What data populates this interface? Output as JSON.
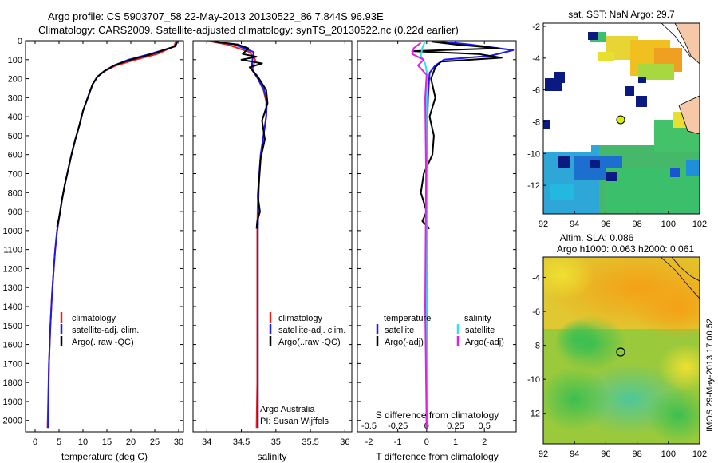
{
  "header": {
    "title_line1": "Argo profile: CS 5903707_58 22-May-2013 20130522_86 7.844S 96.93E",
    "title_line2": "Climatology: CARS2009. Satellite-adjusted climatology: synTS_20130522.nc (0.22d earlier)"
  },
  "colors": {
    "climatology": "#e8231c",
    "satellite_adj": "#1a1aee",
    "argo": "#000000",
    "satellite_cyan": "#33e0e8",
    "argo_magenta": "#e020e0"
  },
  "chart_data": [
    {
      "type": "line",
      "panel": "temperature",
      "xlabel": "temperature (deg C)",
      "ylabel": "",
      "xlim": [
        -2,
        31
      ],
      "ylim": [
        2060,
        0
      ],
      "xticks": [
        "0",
        "5",
        "10",
        "15",
        "20",
        "25",
        "30"
      ],
      "yticks": [
        "0",
        "100",
        "200",
        "300",
        "400",
        "500",
        "600",
        "700",
        "800",
        "900",
        "1000",
        "1100",
        "1200",
        "1300",
        "1400",
        "1500",
        "1600",
        "1700",
        "1800",
        "1900",
        "2000"
      ],
      "legend": [
        "climatology",
        "satellite-adj. clim.",
        "Argo(..raw -QC)"
      ],
      "series": [
        {
          "name": "climatology",
          "color": "climatology",
          "x": [
            29.5,
            29.0,
            25.5,
            21.0,
            17.0,
            14.5,
            13.0,
            12.0,
            11.0,
            10.0,
            9.2,
            8.4,
            7.6,
            6.9,
            6.2,
            5.6,
            5.1,
            4.6,
            4.2,
            3.9,
            3.5,
            3.2,
            2.9,
            2.6
          ],
          "y": [
            0,
            30,
            70,
            100,
            130,
            160,
            190,
            230,
            300,
            370,
            450,
            520,
            600,
            680,
            760,
            840,
            920,
            1000,
            1100,
            1200,
            1350,
            1500,
            1700,
            2040
          ]
        },
        {
          "name": "satellite-adj. clim.",
          "color": "satellite_adj",
          "x": [
            29.8,
            29.3,
            24.0,
            19.5,
            16.5,
            14.4,
            13.0,
            12.0,
            11.0,
            10.0,
            9.2,
            8.4,
            7.6,
            6.9,
            6.2,
            5.6,
            5.1,
            4.6,
            4.2,
            3.9,
            3.5,
            3.2,
            2.9,
            2.7
          ],
          "y": [
            0,
            30,
            70,
            100,
            130,
            160,
            190,
            230,
            300,
            370,
            450,
            520,
            600,
            680,
            760,
            840,
            920,
            1000,
            1100,
            1200,
            1350,
            1500,
            1700,
            2040
          ]
        },
        {
          "name": "Argo(..raw -QC)",
          "color": "argo",
          "x": [
            29.7,
            29.2,
            24.5,
            20.0,
            16.5,
            14.5,
            13.0,
            12.0,
            11.0,
            10.0,
            9.2,
            8.4,
            7.6,
            6.9,
            6.2,
            5.6,
            5.1,
            4.6
          ],
          "y": [
            5,
            30,
            70,
            100,
            130,
            160,
            190,
            230,
            300,
            370,
            450,
            520,
            600,
            680,
            760,
            840,
            920,
            980
          ]
        }
      ]
    },
    {
      "type": "line",
      "panel": "salinity",
      "xlabel": "salinity",
      "xlim": [
        33.8,
        36.1
      ],
      "ylim": [
        2060,
        0
      ],
      "xticks": [
        "34",
        "34.5",
        "35",
        "35.5",
        "36"
      ],
      "legend": [
        "climatology",
        "satellite-adj. clim.",
        "Argo(..raw -QC)"
      ],
      "annotations": [
        "Argo Australia",
        "PI: Susan Wijffels"
      ],
      "series": [
        {
          "name": "climatology",
          "color": "climatology",
          "x": [
            34.0,
            34.3,
            34.62,
            34.7,
            34.66,
            34.74,
            34.82,
            34.86,
            34.86,
            34.82,
            34.78,
            34.76,
            34.74,
            34.73,
            34.73,
            34.73,
            34.73,
            34.72
          ],
          "y": [
            0,
            20,
            60,
            100,
            150,
            200,
            260,
            320,
            400,
            500,
            600,
            700,
            800,
            1000,
            1200,
            1500,
            1800,
            2040
          ]
        },
        {
          "name": "satellite-adj. clim.",
          "color": "satellite_adj",
          "x": [
            34.05,
            34.4,
            34.68,
            34.66,
            34.65,
            34.74,
            34.83,
            34.87,
            34.86,
            34.82,
            34.78,
            34.76,
            34.75,
            34.74,
            34.74,
            34.74,
            34.74,
            34.74
          ],
          "y": [
            0,
            20,
            60,
            100,
            150,
            200,
            260,
            320,
            400,
            500,
            600,
            700,
            800,
            1000,
            1200,
            1500,
            1800,
            2040
          ]
        },
        {
          "name": "Argo(..raw -QC)",
          "color": "argo",
          "x": [
            34.1,
            34.45,
            34.6,
            34.52,
            34.72,
            34.5,
            34.8,
            34.62,
            34.74,
            34.86,
            34.88,
            34.8,
            34.84,
            34.78,
            34.76,
            34.74,
            34.77,
            34.73,
            34.72
          ],
          "y": [
            5,
            20,
            40,
            70,
            85,
            100,
            120,
            140,
            190,
            260,
            330,
            420,
            520,
            620,
            720,
            820,
            900,
            950,
            990
          ]
        }
      ]
    },
    {
      "type": "line",
      "panel": "difference",
      "xlabel": "T difference from climatology",
      "xlabel2": "S difference from climatology",
      "xlim": [
        -2.4,
        3.1
      ],
      "ylim": [
        2060,
        0
      ],
      "xticks": [
        "-2",
        "-1",
        "0",
        "1",
        "2"
      ],
      "xticks_top": [
        "-0.5",
        "-0.25",
        "0",
        "0.25",
        "0.5"
      ],
      "legend_left_title": "temperature",
      "legend_right_title": "salinity",
      "legend_left": [
        "satellite",
        "Argo(-adj)"
      ],
      "legend_right": [
        "satellite",
        "Argo(-adj)"
      ],
      "series": [
        {
          "name": "temperature satellite",
          "color": "satellite_adj",
          "x": [
            0.2,
            1.5,
            3.0,
            2.2,
            0.6,
            0.3,
            0.1,
            0.08,
            0.05,
            0.03,
            0.02,
            0.0,
            0.0,
            0.0
          ],
          "y": [
            0,
            20,
            50,
            80,
            100,
            130,
            170,
            220,
            300,
            400,
            500,
            700,
            1000,
            2040
          ]
        },
        {
          "name": "temperature Argo(-adj)",
          "color": "argo",
          "x": [
            0.2,
            1.0,
            2.5,
            -0.5,
            1.8,
            2.6,
            0.5,
            0.3,
            0.15,
            0.3,
            0.1,
            0.25,
            0.2,
            -0.1,
            -0.2,
            -0.1,
            0.0,
            -0.15,
            0.1
          ],
          "y": [
            5,
            20,
            40,
            55,
            70,
            90,
            110,
            140,
            200,
            300,
            400,
            500,
            600,
            700,
            800,
            850,
            900,
            950,
            990
          ]
        },
        {
          "name": "salinity satellite",
          "color": "satellite_cyan",
          "x": [
            -0.05,
            -0.15,
            -0.2,
            -0.05,
            0.0,
            0.0,
            0.0,
            0.0,
            0.0
          ],
          "y": [
            0,
            40,
            80,
            120,
            160,
            200,
            400,
            1000,
            2040
          ]
        },
        {
          "name": "salinity Argo(-adj)",
          "color": "argo_magenta",
          "x": [
            -0.2,
            -0.45,
            -0.5,
            -0.1,
            -0.3,
            0.0,
            -0.05,
            -0.02,
            -0.05,
            0.0
          ],
          "y": [
            10,
            40,
            70,
            100,
            130,
            180,
            300,
            700,
            1400,
            2040
          ]
        }
      ]
    },
    {
      "type": "heatmap",
      "panel": "sst_map",
      "title": "sat. SST: NaN Argo: 29.7",
      "xlim": [
        92,
        102
      ],
      "ylim": [
        -13.8,
        -1.8
      ],
      "xticks": [
        "92",
        "94",
        "96",
        "98",
        "100",
        "102"
      ],
      "yticks": [
        "-2",
        "-4",
        "-6",
        "-8",
        "-10",
        "-12"
      ],
      "argo_position": {
        "lon": 96.93,
        "lat": -7.844
      }
    },
    {
      "type": "heatmap",
      "panel": "sla_map",
      "title": "Altim. SLA: 0.086",
      "subtitle": "Argo h1000: 0.063 h2000: 0.061",
      "xlim": [
        92,
        102
      ],
      "ylim": [
        -13.8,
        -2.8
      ],
      "xticks": [
        "92",
        "94",
        "96",
        "98",
        "100",
        "102"
      ],
      "yticks": [
        "-4",
        "-6",
        "-8",
        "-10",
        "-12"
      ],
      "argo_position": {
        "lon": 96.93,
        "lat": -7.844
      }
    }
  ],
  "footer": {
    "credit": "IMOS 29-May-2013 17:00:52"
  }
}
